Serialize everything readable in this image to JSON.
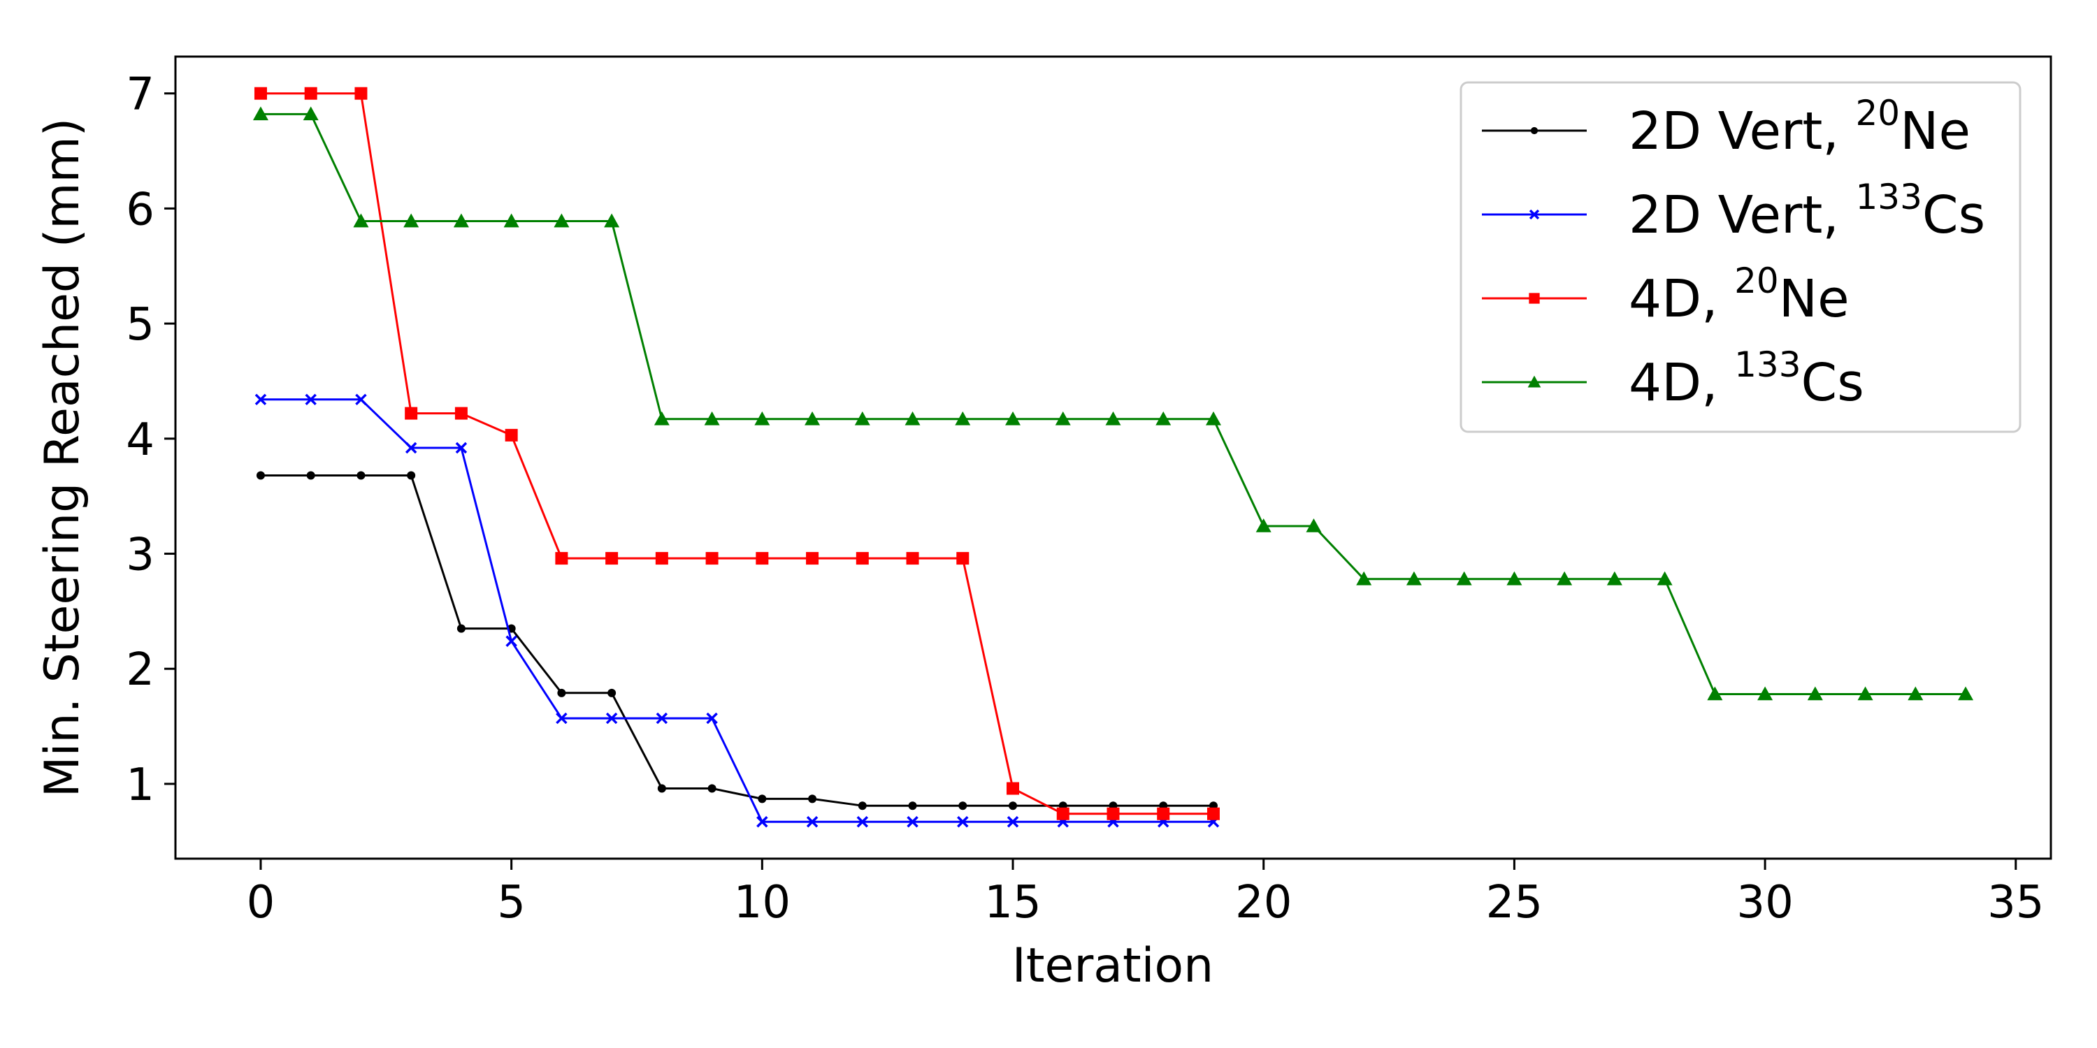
{
  "chart_data": {
    "type": "line",
    "title": "",
    "xlabel": "Iteration",
    "ylabel": "Min. Steering Reached (mm)",
    "xlim": [
      -1.7,
      35.7
    ],
    "ylim": [
      0.35,
      7.32
    ],
    "xticks": [
      0,
      5,
      10,
      15,
      20,
      25,
      30,
      35
    ],
    "yticks": [
      1,
      2,
      3,
      4,
      5,
      6,
      7
    ],
    "grid": false,
    "legend_position": "top-right",
    "series": [
      {
        "name": "2D Vert, ²⁰Ne",
        "legend": {
          "prefix": "2D Vert, ",
          "sup": "20",
          "suffix": "Ne"
        },
        "color": "#000000",
        "marker": "dot",
        "x": [
          0,
          1,
          2,
          3,
          4,
          5,
          6,
          7,
          8,
          9,
          10,
          11,
          12,
          13,
          14,
          15,
          16,
          17,
          18,
          19
        ],
        "y": [
          3.68,
          3.68,
          3.68,
          3.68,
          2.35,
          2.35,
          1.79,
          1.79,
          0.96,
          0.96,
          0.87,
          0.87,
          0.81,
          0.81,
          0.81,
          0.81,
          0.81,
          0.81,
          0.81,
          0.81
        ]
      },
      {
        "name": "2D Vert, ¹³³Cs",
        "legend": {
          "prefix": "2D Vert, ",
          "sup": "133",
          "suffix": "Cs"
        },
        "color": "#0000ff",
        "marker": "x",
        "x": [
          0,
          1,
          2,
          3,
          4,
          5,
          6,
          7,
          8,
          9,
          10,
          11,
          12,
          13,
          14,
          15,
          16,
          17,
          18,
          19
        ],
        "y": [
          4.34,
          4.34,
          4.34,
          3.92,
          3.92,
          2.24,
          1.57,
          1.57,
          1.57,
          1.57,
          0.67,
          0.67,
          0.67,
          0.67,
          0.67,
          0.67,
          0.67,
          0.67,
          0.67,
          0.67
        ]
      },
      {
        "name": "4D, ²⁰Ne",
        "legend": {
          "prefix": "4D, ",
          "sup": "20",
          "suffix": "Ne"
        },
        "color": "#ff0000",
        "marker": "square",
        "x": [
          0,
          1,
          2,
          3,
          4,
          5,
          6,
          7,
          8,
          9,
          10,
          11,
          12,
          13,
          14,
          15,
          16,
          17,
          18,
          19
        ],
        "y": [
          7.0,
          7.0,
          7.0,
          4.22,
          4.22,
          4.03,
          2.96,
          2.96,
          2.96,
          2.96,
          2.96,
          2.96,
          2.96,
          2.96,
          2.96,
          0.96,
          0.74,
          0.74,
          0.74,
          0.74
        ]
      },
      {
        "name": "4D, ¹³³Cs",
        "legend": {
          "prefix": "4D, ",
          "sup": "133",
          "suffix": "Cs"
        },
        "color": "#008000",
        "marker": "triangle",
        "x": [
          0,
          1,
          2,
          3,
          4,
          5,
          6,
          7,
          8,
          9,
          10,
          11,
          12,
          13,
          14,
          15,
          16,
          17,
          18,
          19,
          20,
          21,
          22,
          23,
          24,
          25,
          26,
          27,
          28,
          29,
          30,
          31,
          32,
          33,
          34
        ],
        "y": [
          6.82,
          6.82,
          5.89,
          5.89,
          5.89,
          5.89,
          5.89,
          5.89,
          4.17,
          4.17,
          4.17,
          4.17,
          4.17,
          4.17,
          4.17,
          4.17,
          4.17,
          4.17,
          4.17,
          4.17,
          3.24,
          3.24,
          2.78,
          2.78,
          2.78,
          2.78,
          2.78,
          2.78,
          2.78,
          1.78,
          1.78,
          1.78,
          1.78,
          1.78,
          1.78
        ]
      }
    ]
  }
}
